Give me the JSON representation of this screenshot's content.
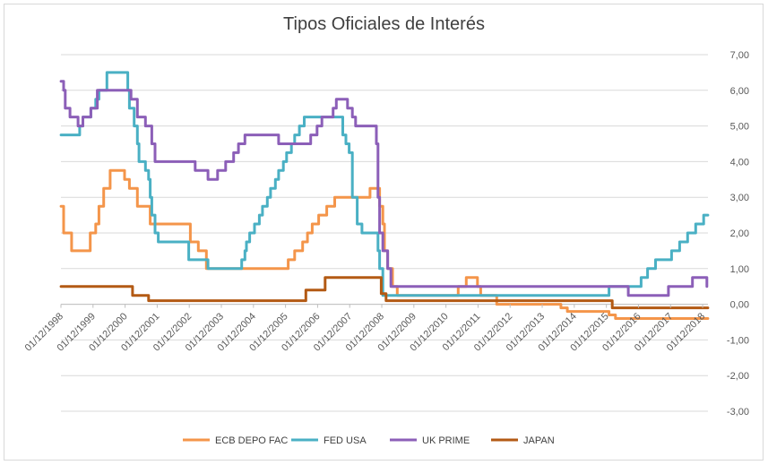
{
  "chart_data": {
    "type": "line",
    "title": "Tipos Oficiales de Interés",
    "xlabel": "",
    "ylabel": "",
    "x_range": [
      1998.917,
      2019.083
    ],
    "ylim": [
      -3,
      7
    ],
    "y_ticks": [
      "7,00",
      "6,00",
      "5,00",
      "4,00",
      "3,00",
      "2,00",
      "1,00",
      "0,00",
      "-1,00",
      "-2,00",
      "-3,00"
    ],
    "x_tick_labels": [
      "01/12/1998",
      "01/12/1999",
      "01/12/2000",
      "01/12/2001",
      "01/12/2002",
      "01/12/2003",
      "01/12/2004",
      "01/12/2005",
      "01/12/2006",
      "01/12/2007",
      "01/12/2008",
      "01/12/2009",
      "01/12/2010",
      "01/12/2011",
      "01/12/2012",
      "01/12/2013",
      "01/12/2014",
      "01/12/2015",
      "01/12/2016",
      "01/12/2017",
      "01/12/2018"
    ],
    "grid": true,
    "legend_position": "bottom",
    "series": [
      {
        "name": "ECB DEPO FAC",
        "color": "#f4954a",
        "points": [
          [
            1998.92,
            2.75
          ],
          [
            1999.0,
            2.0
          ],
          [
            1999.25,
            1.5
          ],
          [
            1999.75,
            1.5
          ],
          [
            1999.83,
            2.0
          ],
          [
            2000.0,
            2.25
          ],
          [
            2000.1,
            2.75
          ],
          [
            2000.25,
            3.25
          ],
          [
            2000.45,
            3.75
          ],
          [
            2000.8,
            3.75
          ],
          [
            2000.9,
            3.5
          ],
          [
            2001.05,
            3.25
          ],
          [
            2001.3,
            2.75
          ],
          [
            2001.7,
            2.25
          ],
          [
            2002.0,
            2.25
          ],
          [
            2002.9,
            2.25
          ],
          [
            2002.95,
            1.75
          ],
          [
            2003.2,
            1.5
          ],
          [
            2003.45,
            1.0
          ],
          [
            2005.9,
            1.0
          ],
          [
            2006.0,
            1.25
          ],
          [
            2006.2,
            1.5
          ],
          [
            2006.45,
            1.75
          ],
          [
            2006.6,
            2.0
          ],
          [
            2006.75,
            2.25
          ],
          [
            2006.95,
            2.5
          ],
          [
            2007.2,
            2.75
          ],
          [
            2007.45,
            3.0
          ],
          [
            2008.5,
            3.0
          ],
          [
            2008.55,
            3.25
          ],
          [
            2008.8,
            3.25
          ],
          [
            2008.85,
            2.75
          ],
          [
            2008.95,
            2.25
          ],
          [
            2009.0,
            1.5
          ],
          [
            2009.1,
            1.0
          ],
          [
            2009.25,
            0.5
          ],
          [
            2009.4,
            0.25
          ],
          [
            2011.25,
            0.25
          ],
          [
            2011.3,
            0.5
          ],
          [
            2011.55,
            0.75
          ],
          [
            2011.85,
            0.75
          ],
          [
            2011.9,
            0.5
          ],
          [
            2012.0,
            0.25
          ],
          [
            2012.5,
            0.0
          ],
          [
            2014.45,
            0.0
          ],
          [
            2014.5,
            -0.1
          ],
          [
            2014.7,
            -0.2
          ],
          [
            2015.9,
            -0.2
          ],
          [
            2016.0,
            -0.3
          ],
          [
            2016.2,
            -0.4
          ],
          [
            2019.08,
            -0.4
          ]
        ]
      },
      {
        "name": "FED USA",
        "color": "#4ab0c4",
        "points": [
          [
            1998.92,
            4.75
          ],
          [
            1999.4,
            4.75
          ],
          [
            1999.5,
            5.0
          ],
          [
            1999.6,
            5.25
          ],
          [
            1999.85,
            5.5
          ],
          [
            2000.0,
            5.75
          ],
          [
            2000.1,
            6.0
          ],
          [
            2000.35,
            6.5
          ],
          [
            2000.95,
            6.5
          ],
          [
            2001.0,
            6.0
          ],
          [
            2001.05,
            5.5
          ],
          [
            2001.2,
            5.0
          ],
          [
            2001.3,
            4.5
          ],
          [
            2001.35,
            4.0
          ],
          [
            2001.55,
            3.75
          ],
          [
            2001.65,
            3.5
          ],
          [
            2001.7,
            3.0
          ],
          [
            2001.75,
            2.5
          ],
          [
            2001.85,
            2.0
          ],
          [
            2001.95,
            1.75
          ],
          [
            2002.85,
            1.75
          ],
          [
            2002.9,
            1.25
          ],
          [
            2003.45,
            1.25
          ],
          [
            2003.5,
            1.0
          ],
          [
            2004.5,
            1.0
          ],
          [
            2004.55,
            1.25
          ],
          [
            2004.65,
            1.5
          ],
          [
            2004.7,
            1.75
          ],
          [
            2004.8,
            2.0
          ],
          [
            2004.95,
            2.25
          ],
          [
            2005.1,
            2.5
          ],
          [
            2005.2,
            2.75
          ],
          [
            2005.35,
            3.0
          ],
          [
            2005.45,
            3.25
          ],
          [
            2005.6,
            3.5
          ],
          [
            2005.7,
            3.75
          ],
          [
            2005.85,
            4.0
          ],
          [
            2005.95,
            4.25
          ],
          [
            2006.1,
            4.5
          ],
          [
            2006.2,
            4.75
          ],
          [
            2006.35,
            5.0
          ],
          [
            2006.5,
            5.25
          ],
          [
            2007.65,
            5.25
          ],
          [
            2007.7,
            4.75
          ],
          [
            2007.8,
            4.5
          ],
          [
            2007.9,
            4.25
          ],
          [
            2008.0,
            3.0
          ],
          [
            2008.1,
            3.0
          ],
          [
            2008.15,
            2.25
          ],
          [
            2008.3,
            2.0
          ],
          [
            2008.75,
            2.0
          ],
          [
            2008.8,
            1.5
          ],
          [
            2008.85,
            1.0
          ],
          [
            2008.95,
            0.25
          ],
          [
            2015.95,
            0.25
          ],
          [
            2016.0,
            0.5
          ],
          [
            2016.95,
            0.5
          ],
          [
            2017.0,
            0.75
          ],
          [
            2017.2,
            1.0
          ],
          [
            2017.45,
            1.25
          ],
          [
            2017.95,
            1.5
          ],
          [
            2018.2,
            1.75
          ],
          [
            2018.45,
            2.0
          ],
          [
            2018.7,
            2.25
          ],
          [
            2018.95,
            2.5
          ],
          [
            2019.08,
            2.5
          ]
        ]
      },
      {
        "name": "UK PRIME",
        "color": "#8c5fb8",
        "points": [
          [
            1998.92,
            6.25
          ],
          [
            1999.0,
            6.0
          ],
          [
            1999.05,
            5.5
          ],
          [
            1999.2,
            5.25
          ],
          [
            1999.45,
            5.0
          ],
          [
            1999.6,
            5.25
          ],
          [
            1999.85,
            5.5
          ],
          [
            2000.05,
            6.0
          ],
          [
            2001.0,
            6.0
          ],
          [
            2001.1,
            5.75
          ],
          [
            2001.3,
            5.25
          ],
          [
            2001.55,
            5.0
          ],
          [
            2001.75,
            4.5
          ],
          [
            2001.85,
            4.0
          ],
          [
            2003.05,
            4.0
          ],
          [
            2003.1,
            3.75
          ],
          [
            2003.5,
            3.5
          ],
          [
            2003.8,
            3.75
          ],
          [
            2004.05,
            4.0
          ],
          [
            2004.3,
            4.25
          ],
          [
            2004.45,
            4.5
          ],
          [
            2004.65,
            4.75
          ],
          [
            2005.65,
            4.75
          ],
          [
            2005.7,
            4.5
          ],
          [
            2006.65,
            4.5
          ],
          [
            2006.7,
            4.75
          ],
          [
            2006.9,
            5.0
          ],
          [
            2007.05,
            5.25
          ],
          [
            2007.4,
            5.5
          ],
          [
            2007.5,
            5.75
          ],
          [
            2007.8,
            5.75
          ],
          [
            2007.85,
            5.5
          ],
          [
            2008.0,
            5.25
          ],
          [
            2008.1,
            5.0
          ],
          [
            2008.6,
            5.0
          ],
          [
            2008.75,
            4.5
          ],
          [
            2008.8,
            3.0
          ],
          [
            2008.85,
            2.0
          ],
          [
            2008.95,
            1.5
          ],
          [
            2009.1,
            1.0
          ],
          [
            2009.2,
            0.5
          ],
          [
            2015.95,
            0.5
          ],
          [
            2016.55,
            0.5
          ],
          [
            2016.6,
            0.25
          ],
          [
            2017.8,
            0.25
          ],
          [
            2017.85,
            0.5
          ],
          [
            2018.55,
            0.5
          ],
          [
            2018.6,
            0.75
          ],
          [
            2018.95,
            0.75
          ],
          [
            2019.05,
            0.5
          ]
        ]
      },
      {
        "name": "JAPAN",
        "color": "#b35a14",
        "points": [
          [
            1998.92,
            0.5
          ],
          [
            2001.1,
            0.5
          ],
          [
            2001.15,
            0.25
          ],
          [
            2001.6,
            0.25
          ],
          [
            2001.65,
            0.1
          ],
          [
            2006.5,
            0.1
          ],
          [
            2006.55,
            0.4
          ],
          [
            2007.1,
            0.4
          ],
          [
            2007.15,
            0.75
          ],
          [
            2008.85,
            0.75
          ],
          [
            2008.9,
            0.3
          ],
          [
            2009.0,
            0.3
          ],
          [
            2009.05,
            0.1
          ],
          [
            2016.05,
            0.1
          ],
          [
            2016.1,
            -0.1
          ],
          [
            2019.08,
            -0.1
          ]
        ]
      }
    ]
  }
}
